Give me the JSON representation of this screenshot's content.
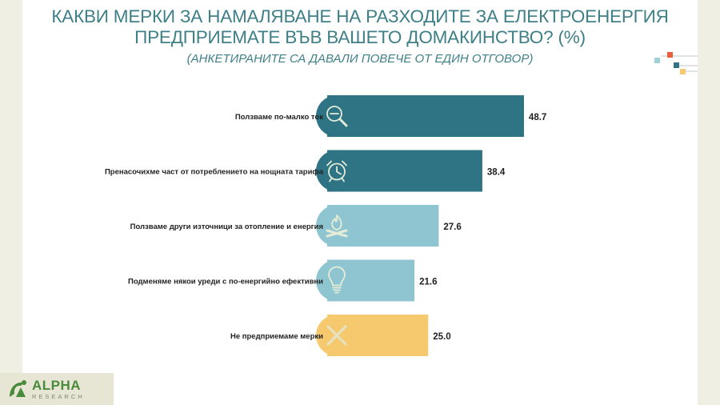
{
  "header": {
    "title_line1": "КАКВИ МЕРКИ ЗА НАМАЛЯВАНЕ НА РАЗХОДИТЕ ЗА ЕЛЕКТРОЕНЕРГИЯ",
    "title_line2": "ПРЕДПРИЕМАТЕ ВЪВ ВАШЕТО ДОМАКИНСТВО? (%)",
    "subtitle": "(АНКЕТИРАНИТЕ СА ДАВАЛИ ПОВЕЧЕ ОТ ЕДИН ОТГОВОР)"
  },
  "logo": {
    "brand": "ALPHA",
    "sub": "RESEARCH"
  },
  "chart_data": {
    "type": "bar",
    "orientation": "horizontal",
    "categories": [
      "Ползваме по-малко ток",
      "Пренасочихме част от потреблението на нощната тарифа",
      "Ползваме други източници за отопление и енергия",
      "Подменяме някои уреди с по-енергийно ефективни",
      "Не предприемаме мерки"
    ],
    "values": [
      48.7,
      38.4,
      27.6,
      21.6,
      25.0
    ],
    "data_labels": [
      "48.7",
      "38.4",
      "27.6",
      "21.6",
      "25.0"
    ],
    "colors": [
      "#2e7485",
      "#2e7485",
      "#8ec5d1",
      "#8ec5d1",
      "#f6c96e"
    ],
    "icons": [
      "magnifier-minus-icon",
      "alarm-clock-icon",
      "campfire-icon",
      "lightbulb-icon",
      "cross-icon"
    ],
    "xlim": [
      0,
      50
    ],
    "grid": false,
    "legend": "none"
  }
}
